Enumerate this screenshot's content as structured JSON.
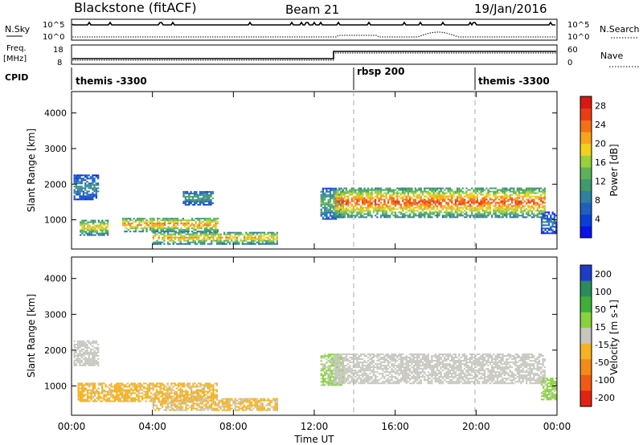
{
  "header": {
    "station": "Blackstone (fitACF)",
    "beam": "Beam 21",
    "date": "19/Jan/2016"
  },
  "strip": {
    "nsky_label": "N.Sky",
    "nsky_ticks": [
      "10^5",
      "10^0"
    ],
    "nsearch_label": "N.Search",
    "freq_label": "Freq.",
    "freq_unit": "[MHz]",
    "freq_ticks": [
      "18",
      "8"
    ],
    "nave_ticks": [
      "60",
      "0"
    ],
    "nave_label": "Nave",
    "cpid_label": "CPID",
    "cpid_segments": [
      {
        "name": "themis -3300",
        "start_hour": 0
      },
      {
        "name": "rbsp 200",
        "start_hour": 14
      },
      {
        "name": "themis -3300",
        "start_hour": 20
      }
    ]
  },
  "chart_data": [
    {
      "type": "heatmap",
      "panel": "power",
      "xlabel": "",
      "ylabel": "Slant Range [km]",
      "xlim": [
        0,
        24
      ],
      "ylim": [
        180,
        4600
      ],
      "yticks": [
        "1000",
        "2000",
        "3000",
        "4000"
      ],
      "colorbar": {
        "label": "Power [dB]",
        "ticks": [
          "4",
          "8",
          "12",
          "16",
          "20",
          "24",
          "28"
        ],
        "range": [
          0,
          30
        ],
        "colors": [
          "#0a14e6",
          "#0a3fd6",
          "#1e5fbf",
          "#2f7fa0",
          "#3f9a6e",
          "#5cb15a",
          "#9cd03b",
          "#f2d11e",
          "#f7a51c",
          "#f46f18",
          "#ea3c16",
          "#d91812"
        ]
      },
      "echo_regions": [
        {
          "t_start": 0.1,
          "t_end": 1.3,
          "range_low": 1550,
          "range_high": 2250,
          "peak_db": 10
        },
        {
          "t_start": 0.4,
          "t_end": 1.8,
          "range_low": 550,
          "range_high": 1000,
          "peak_db": 20
        },
        {
          "t_start": 2.5,
          "t_end": 7.2,
          "range_low": 650,
          "range_high": 1050,
          "peak_db": 24
        },
        {
          "t_start": 4.0,
          "t_end": 10.2,
          "range_low": 300,
          "range_high": 650,
          "peak_db": 22
        },
        {
          "t_start": 5.5,
          "t_end": 7.0,
          "range_low": 1400,
          "range_high": 1800,
          "peak_db": 12
        },
        {
          "t_start": 12.3,
          "t_end": 13.4,
          "range_low": 1000,
          "range_high": 1900,
          "peak_db": 14
        },
        {
          "t_start": 13.0,
          "t_end": 23.4,
          "range_low": 1050,
          "range_high": 1900,
          "peak_db": 26
        },
        {
          "t_start": 23.2,
          "t_end": 24.0,
          "range_low": 600,
          "range_high": 1200,
          "peak_db": 8
        }
      ]
    },
    {
      "type": "heatmap",
      "panel": "velocity",
      "xlabel": "Time UT",
      "ylabel": "Slant Range [km]",
      "xlim": [
        0,
        24
      ],
      "ylim": [
        180,
        4600
      ],
      "xticks": [
        "00:00",
        "04:00",
        "08:00",
        "12:00",
        "16:00",
        "20:00",
        "00:00"
      ],
      "yticks": [
        "1000",
        "2000",
        "3000",
        "4000"
      ],
      "colorbar": {
        "label": "Velocity [m s-1]",
        "ticks": [
          "200",
          "100",
          "50",
          "15",
          "-15",
          "-50",
          "-100",
          "-200"
        ],
        "colors": [
          "#1f3cc7",
          "#2a8c5a",
          "#3fae3a",
          "#89d23e",
          "#c7c7c0",
          "#f5b323",
          "#f38a1a",
          "#f05a16",
          "#e22212"
        ]
      },
      "echo_regions": [
        {
          "t_start": 0.1,
          "t_end": 1.3,
          "range_low": 1550,
          "range_high": 2250,
          "velocity": 0
        },
        {
          "t_start": 0.3,
          "t_end": 7.2,
          "range_low": 550,
          "range_high": 1050,
          "velocity": -40
        },
        {
          "t_start": 4.0,
          "t_end": 10.2,
          "range_low": 300,
          "range_high": 650,
          "velocity": -30
        },
        {
          "t_start": 12.3,
          "t_end": 13.4,
          "range_low": 1000,
          "range_high": 1900,
          "velocity": 30
        },
        {
          "t_start": 13.0,
          "t_end": 23.4,
          "range_low": 1050,
          "range_high": 1900,
          "velocity": 0
        },
        {
          "t_start": 23.2,
          "t_end": 24.0,
          "range_low": 600,
          "range_high": 1200,
          "velocity": 40
        }
      ]
    }
  ]
}
